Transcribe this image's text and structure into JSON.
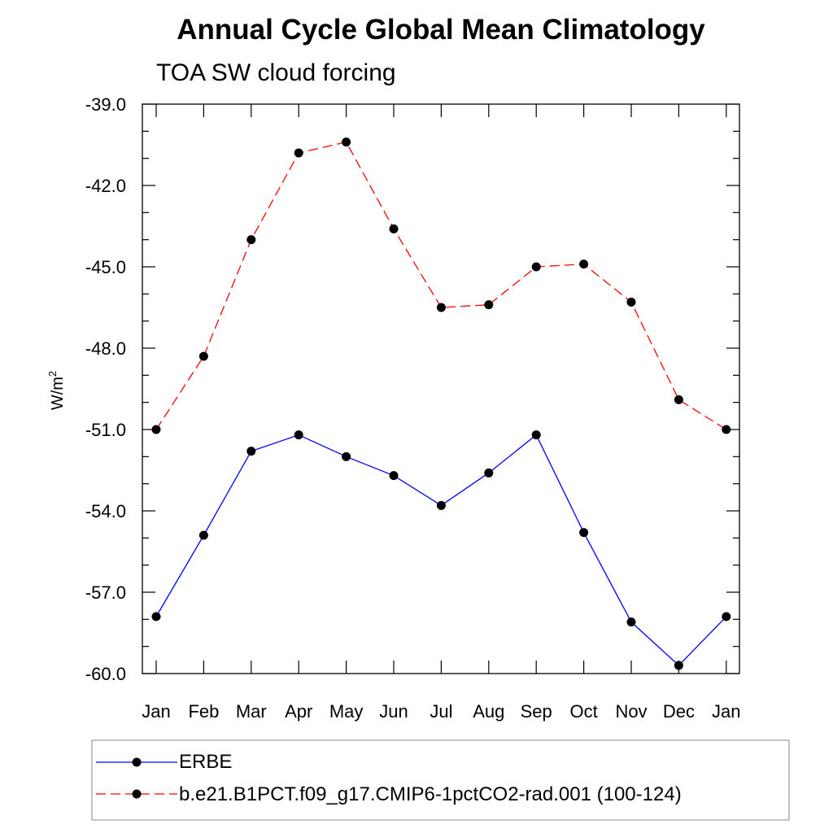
{
  "chart_data": {
    "type": "line",
    "title": "Annual Cycle Global Mean Climatology",
    "subtitle": "TOA SW cloud forcing",
    "ylabel": "W/m",
    "ylabel_sup": "2",
    "xlabel": "",
    "ylim": [
      -60.0,
      -39.0
    ],
    "yticks": [
      "-39.0",
      "-42.0",
      "-45.0",
      "-48.0",
      "-51.0",
      "-54.0",
      "-57.0",
      "-60.0"
    ],
    "categories": [
      "Jan",
      "Feb",
      "Mar",
      "Apr",
      "May",
      "Jun",
      "Jul",
      "Aug",
      "Sep",
      "Oct",
      "Nov",
      "Dec",
      "Jan"
    ],
    "grid": false,
    "legend_position": "bottom",
    "series": [
      {
        "name": "ERBE",
        "color": "#0000ff",
        "line_style": "solid",
        "values": [
          -57.9,
          -54.9,
          -51.8,
          -51.2,
          -52.0,
          -52.7,
          -53.8,
          -52.6,
          -51.2,
          -54.8,
          -58.1,
          -59.7,
          -57.9
        ]
      },
      {
        "name": "b.e21.B1PCT.f09_g17.CMIP6-1pctCO2-rad.001 (100-124)",
        "color": "#ff0000",
        "line_style": "dashed",
        "values": [
          -51.0,
          -48.3,
          -44.0,
          -40.8,
          -40.4,
          -43.6,
          -46.5,
          -46.4,
          -45.0,
          -44.9,
          -46.3,
          -49.9,
          -51.0
        ]
      }
    ]
  }
}
